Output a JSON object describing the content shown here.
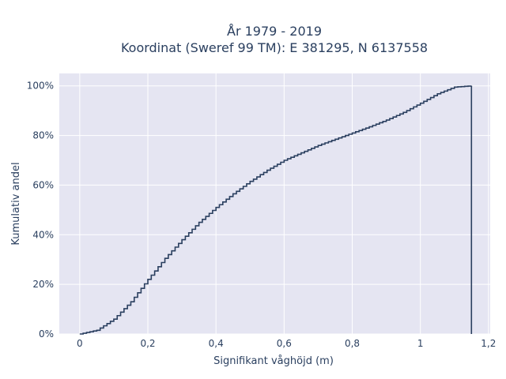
{
  "chart_data": {
    "type": "line",
    "line_shape": "step",
    "title_line1": "År 1979 - 2019",
    "title_line2": "Koordinat (Sweref 99 TM): E 381295, N 6137558",
    "xlabel": "Signifikant våghöjd (m)",
    "ylabel": "Kumulativ andel",
    "xlim": [
      -0.06,
      1.205
    ],
    "ylim": [
      0,
      1.05
    ],
    "x_ticks": [
      0,
      0.2,
      0.4,
      0.6,
      0.8,
      1.0,
      1.2
    ],
    "x_tick_labels": [
      "0",
      "0,2",
      "0,4",
      "0,6",
      "0,8",
      "1",
      "1,2"
    ],
    "y_ticks": [
      0,
      0.2,
      0.4,
      0.6,
      0.8,
      1.0
    ],
    "y_tick_labels": [
      "0%",
      "20%",
      "40%",
      "60%",
      "80%",
      "100%"
    ],
    "grid": true,
    "background": "#e5e5f2",
    "line_color": "#2a3f5f",
    "series": [
      {
        "x": [
          0,
          0.05,
          0.1,
          0.15,
          0.2,
          0.25,
          0.3,
          0.35,
          0.4,
          0.45,
          0.5,
          0.55,
          0.6,
          0.65,
          0.7,
          0.75,
          0.8,
          0.85,
          0.9,
          0.95,
          1.0,
          1.05,
          1.1,
          1.15
        ],
        "y": [
          0,
          0.015,
          0.06,
          0.13,
          0.22,
          0.305,
          0.38,
          0.45,
          0.51,
          0.565,
          0.615,
          0.66,
          0.7,
          0.73,
          0.76,
          0.785,
          0.81,
          0.835,
          0.862,
          0.893,
          0.93,
          0.968,
          0.995,
          1.0
        ]
      }
    ]
  }
}
